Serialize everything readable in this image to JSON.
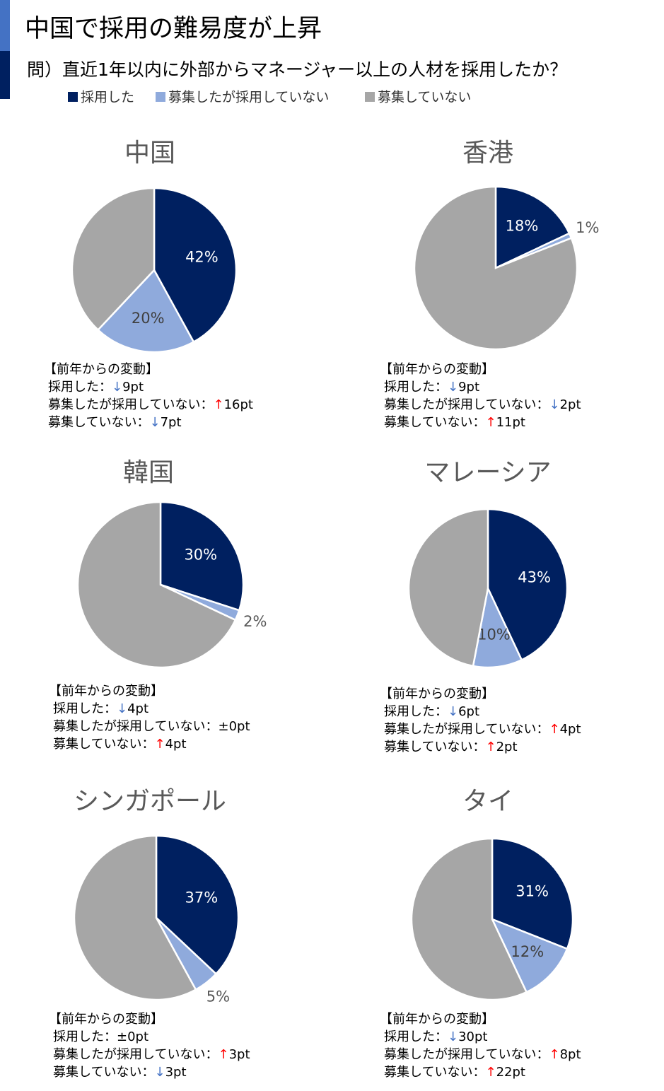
{
  "title": "中国で採用の難易度が上昇",
  "subtitle": "問）直近1年以内に外部からマネージャー以上の人材を採用したか？",
  "legend": {
    "categories": [
      "採用した",
      "募集したが採用していない",
      "募集していない"
    ],
    "colors": [
      "#002060",
      "#8faadc",
      "#a6a6a6"
    ]
  },
  "chart_data": [
    {
      "type": "pie",
      "title": "中国",
      "values": [
        42,
        20,
        38
      ],
      "value_labels": [
        "42%",
        "20%",
        null
      ],
      "note_title": "【前年からの変動】",
      "changes": [
        {
          "label": "採用した：",
          "arrow": "↓",
          "amount": "9pt"
        },
        {
          "label": "募集したが採用していない：",
          "arrow": "↑",
          "amount": "16pt"
        },
        {
          "label": "募集していない：",
          "arrow": "↓",
          "amount": "7pt"
        }
      ]
    },
    {
      "type": "pie",
      "title": "香港",
      "values": [
        18,
        1,
        81
      ],
      "value_labels": [
        "18%",
        "1%",
        null
      ],
      "note_title": "【前年からの変動】",
      "changes": [
        {
          "label": "採用した：",
          "arrow": "↓",
          "amount": "9pt"
        },
        {
          "label": "募集したが採用していない：",
          "arrow": "↓",
          "amount": "2pt"
        },
        {
          "label": "募集していない：",
          "arrow": "↑",
          "amount": "11pt"
        }
      ]
    },
    {
      "type": "pie",
      "title": "韓国",
      "values": [
        30,
        2,
        68
      ],
      "value_labels": [
        "30%",
        "2%",
        null
      ],
      "note_title": "【前年からの変動】",
      "changes": [
        {
          "label": "採用した：",
          "arrow": "↓",
          "amount": "4pt"
        },
        {
          "label": "募集したが採用していない：",
          "arrow": "±",
          "amount": "0pt"
        },
        {
          "label": "募集していない：",
          "arrow": "↑",
          "amount": "4pt"
        }
      ]
    },
    {
      "type": "pie",
      "title": "マレーシア",
      "values": [
        43,
        10,
        47
      ],
      "value_labels": [
        "43%",
        "10%",
        null
      ],
      "note_title": "【前年からの変動】",
      "changes": [
        {
          "label": "採用した：",
          "arrow": "↓",
          "amount": "6pt"
        },
        {
          "label": "募集したが採用していない：",
          "arrow": "↑",
          "amount": "4pt"
        },
        {
          "label": "募集していない：",
          "arrow": "↑",
          "amount": "2pt"
        }
      ]
    },
    {
      "type": "pie",
      "title": "シンガポール",
      "values": [
        37,
        5,
        58
      ],
      "value_labels": [
        "37%",
        "5%",
        null
      ],
      "note_title": "【前年からの変動】",
      "changes": [
        {
          "label": "採用した：",
          "arrow": "±",
          "amount": "0pt"
        },
        {
          "label": "募集したが採用していない：",
          "arrow": "↑",
          "amount": "3pt"
        },
        {
          "label": "募集していない：",
          "arrow": "↓",
          "amount": "3pt"
        }
      ]
    },
    {
      "type": "pie",
      "title": "タイ",
      "values": [
        31,
        12,
        57
      ],
      "value_labels": [
        "31%",
        "12%",
        null
      ],
      "note_title": "【前年からの変動】",
      "changes": [
        {
          "label": "採用した：",
          "arrow": "↓",
          "amount": "30pt"
        },
        {
          "label": "募集したが採用していない：",
          "arrow": "↑",
          "amount": "8pt"
        },
        {
          "label": "募集していない：",
          "arrow": "↑",
          "amount": "22pt"
        }
      ]
    }
  ]
}
